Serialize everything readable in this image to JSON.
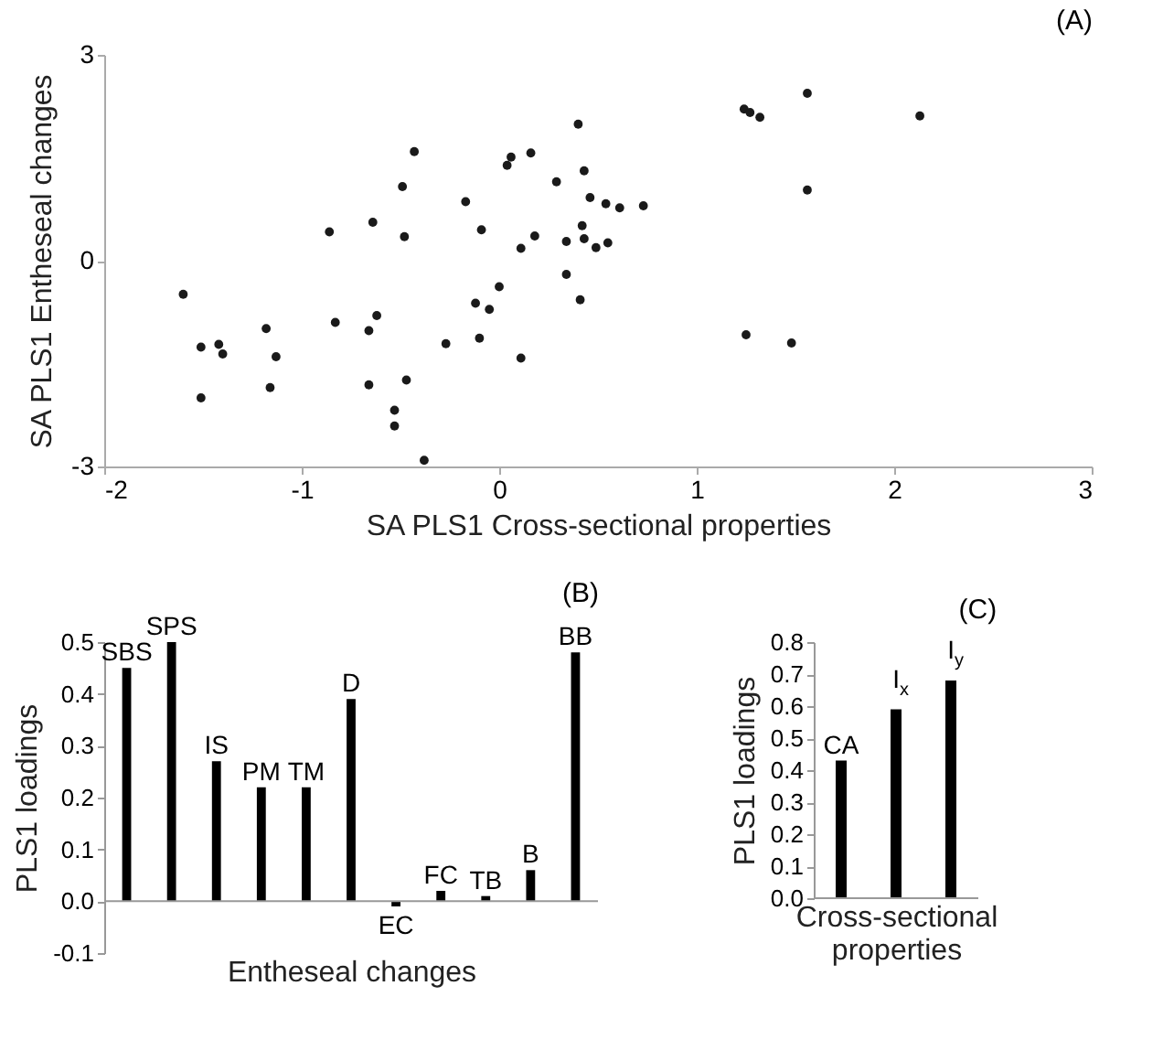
{
  "chart_data": [
    {
      "type": "scatter",
      "title": "(A)",
      "xlabel": "SA PLS1 Cross-sectional properties",
      "ylabel": "SA PLS1 Entheseal changes",
      "xlim": [
        -2,
        3
      ],
      "xticks": [
        -2,
        -1,
        0,
        1,
        2,
        3
      ],
      "ylim": [
        -3,
        3
      ],
      "yticks": [
        -3,
        0,
        3
      ],
      "marker": "circle",
      "grid": false,
      "series": [
        {
          "color": "#1a1a1a",
          "x": [
            -1.6,
            -1.51,
            -1.42,
            -1.4,
            -1.51,
            -1.18,
            -1.13,
            -1.16,
            -0.86,
            -0.83,
            -0.64,
            -0.62,
            -0.66,
            -0.66,
            -0.43,
            -0.49,
            -0.48,
            -0.47,
            -0.53,
            -0.53,
            -0.38,
            -0.27,
            -0.17,
            -0.09,
            -0.12,
            -0.05,
            0.0,
            -0.1,
            0.04,
            0.06,
            0.16,
            0.11,
            0.18,
            0.11,
            0.29,
            0.4,
            0.43,
            0.46,
            0.54,
            0.42,
            0.34,
            0.43,
            0.49,
            0.55,
            0.34,
            0.41,
            0.61,
            0.73,
            1.24,
            1.27,
            1.32,
            1.56,
            2.13,
            1.56,
            1.25,
            1.48
          ],
          "values": [
            -0.49,
            -1.26,
            -1.22,
            -1.36,
            -2.0,
            -0.99,
            -1.4,
            -1.85,
            0.42,
            -0.9,
            0.56,
            -0.8,
            -1.02,
            -1.81,
            1.59,
            1.08,
            0.35,
            -1.74,
            -2.18,
            -2.41,
            -2.91,
            -1.21,
            0.86,
            0.45,
            -0.62,
            -0.71,
            -0.38,
            -1.13,
            1.39,
            1.51,
            1.57,
            0.18,
            0.36,
            -1.42,
            1.15,
            1.99,
            1.31,
            0.92,
            0.83,
            0.51,
            0.28,
            0.32,
            0.19,
            0.26,
            -0.2,
            -0.57,
            0.77,
            0.8,
            2.21,
            2.16,
            2.09,
            2.44,
            2.11,
            1.03,
            -1.08,
            -1.2
          ]
        }
      ]
    },
    {
      "type": "bar",
      "title": "(B)",
      "xlabel": "Entheseal changes",
      "ylabel": "PLS1 loadings",
      "ylim": [
        -0.1,
        0.5
      ],
      "yticks": [
        -0.1,
        {
          "value": 0,
          "label": "0.0"
        },
        0.1,
        0.2,
        0.3,
        0.4,
        0.5
      ],
      "tick_labels": "y",
      "categories": [
        "SBS",
        "SPS",
        "IS",
        "PM",
        "TM",
        "D",
        "EC",
        "FC",
        "TB",
        "B",
        "BB"
      ],
      "series": [
        {
          "color": "#000000",
          "values": [
            0.45,
            0.5,
            0.27,
            0.22,
            0.22,
            0.39,
            -0.01,
            0.02,
            0.01,
            0.06,
            0.48
          ]
        }
      ]
    },
    {
      "type": "bar",
      "title": "(C)",
      "xlabel": "Cross-sectional properties",
      "ylabel": "PLS1 loadings",
      "ylim": [
        0,
        0.8
      ],
      "yticks": [
        {
          "value": 0,
          "label": "0.0"
        },
        0.1,
        0.2,
        0.3,
        0.4,
        0.5,
        0.6,
        0.7,
        0.8
      ],
      "tick_labels": "y",
      "categories": [
        "CA",
        "I$_{x}$",
        "I$_{y}$"
      ],
      "series": [
        {
          "color": "#000000",
          "values": [
            0.43,
            0.59,
            0.68
          ]
        }
      ]
    }
  ]
}
